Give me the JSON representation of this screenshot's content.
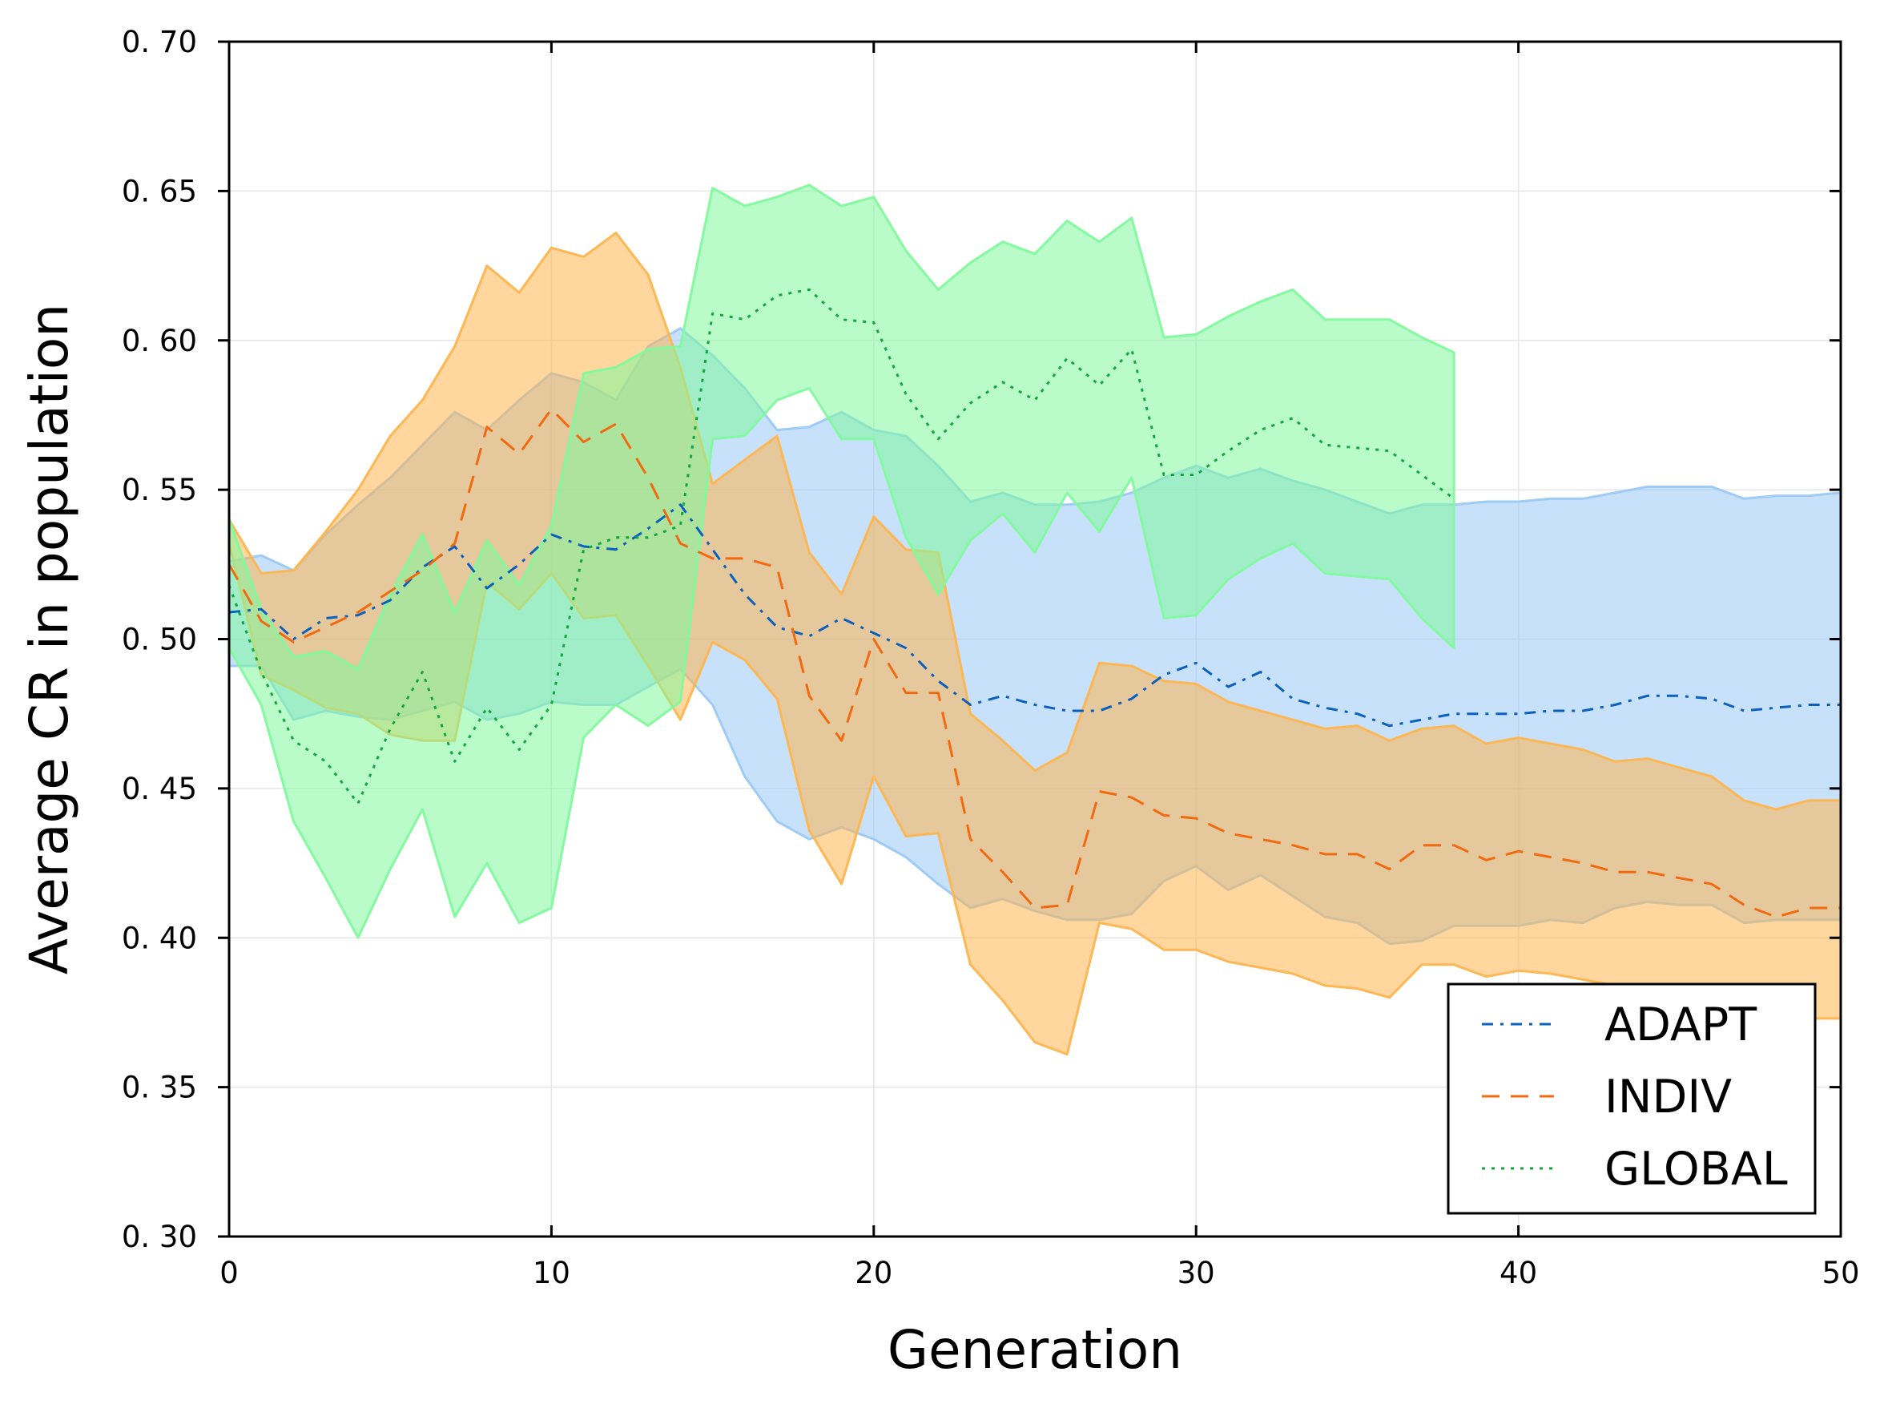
{
  "chart_data": {
    "type": "line",
    "title": "",
    "xlabel": "Generation",
    "ylabel": "Average CR in population",
    "xlim": [
      0,
      50
    ],
    "ylim": [
      0.3,
      0.7
    ],
    "x_ticks": [
      0,
      10,
      20,
      30,
      40,
      50
    ],
    "x_tick_labels": [
      "0",
      "10",
      "20",
      "30",
      "40",
      "50"
    ],
    "y_ticks": [
      0.3,
      0.35,
      0.4,
      0.45,
      0.5,
      0.55,
      0.6,
      0.65,
      0.7
    ],
    "y_tick_labels": [
      "0. 30",
      "0. 35",
      "0. 40",
      "0. 45",
      "0. 50",
      "0. 55",
      "0. 60",
      "0. 65",
      "0. 70"
    ],
    "grid": true,
    "legend_position": "bottom-right",
    "series": [
      {
        "name": "ADAPT",
        "color": "#0a5fbf",
        "band_color": "#9bc9f5",
        "dash": "dashdot",
        "x": [
          0,
          1,
          2,
          3,
          4,
          5,
          6,
          7,
          8,
          9,
          10,
          11,
          12,
          13,
          14,
          15,
          16,
          17,
          18,
          19,
          20,
          21,
          22,
          23,
          24,
          25,
          26,
          27,
          28,
          29,
          30,
          31,
          32,
          33,
          34,
          35,
          36,
          37,
          38,
          39,
          40,
          41,
          42,
          43,
          44,
          45,
          46,
          47,
          48,
          49,
          50
        ],
        "mean": [
          0.509,
          0.51,
          0.5,
          0.507,
          0.508,
          0.513,
          0.524,
          0.531,
          0.517,
          0.525,
          0.535,
          0.531,
          0.53,
          0.537,
          0.545,
          0.53,
          0.515,
          0.504,
          0.501,
          0.507,
          0.502,
          0.497,
          0.486,
          0.478,
          0.481,
          0.478,
          0.476,
          0.476,
          0.48,
          0.488,
          0.492,
          0.484,
          0.489,
          0.48,
          0.477,
          0.475,
          0.471,
          0.473,
          0.475,
          0.475,
          0.475,
          0.476,
          0.476,
          0.478,
          0.481,
          0.481,
          0.48,
          0.476,
          0.477,
          0.478,
          0.478
        ],
        "upper": [
          0.526,
          0.528,
          0.523,
          0.535,
          0.545,
          0.554,
          0.565,
          0.576,
          0.57,
          0.58,
          0.589,
          0.586,
          0.58,
          0.598,
          0.604,
          0.595,
          0.584,
          0.57,
          0.571,
          0.576,
          0.57,
          0.568,
          0.558,
          0.546,
          0.549,
          0.545,
          0.545,
          0.546,
          0.549,
          0.554,
          0.558,
          0.554,
          0.557,
          0.553,
          0.55,
          0.546,
          0.542,
          0.545,
          0.545,
          0.546,
          0.546,
          0.547,
          0.547,
          0.549,
          0.551,
          0.551,
          0.551,
          0.547,
          0.548,
          0.548,
          0.549
        ],
        "lower": [
          0.491,
          0.491,
          0.473,
          0.476,
          0.474,
          0.473,
          0.476,
          0.479,
          0.473,
          0.475,
          0.479,
          0.478,
          0.478,
          0.484,
          0.49,
          0.478,
          0.454,
          0.439,
          0.433,
          0.437,
          0.433,
          0.427,
          0.418,
          0.41,
          0.413,
          0.409,
          0.406,
          0.406,
          0.408,
          0.419,
          0.424,
          0.416,
          0.421,
          0.414,
          0.407,
          0.405,
          0.398,
          0.399,
          0.404,
          0.404,
          0.404,
          0.406,
          0.405,
          0.41,
          0.412,
          0.411,
          0.411,
          0.405,
          0.406,
          0.406,
          0.406
        ]
      },
      {
        "name": "INDIV",
        "color": "#f26a10",
        "band_color": "#fdb54e",
        "dash": "dashed",
        "x": [
          0,
          1,
          2,
          3,
          4,
          5,
          6,
          7,
          8,
          9,
          10,
          11,
          12,
          13,
          14,
          15,
          16,
          17,
          18,
          19,
          20,
          21,
          22,
          23,
          24,
          25,
          26,
          27,
          28,
          29,
          30,
          31,
          32,
          33,
          34,
          35,
          36,
          37,
          38,
          39,
          40,
          41,
          42,
          43,
          44,
          45,
          46,
          47,
          48,
          49,
          50
        ],
        "mean": [
          0.525,
          0.506,
          0.499,
          0.504,
          0.509,
          0.516,
          0.523,
          0.532,
          0.571,
          0.562,
          0.577,
          0.566,
          0.572,
          0.554,
          0.532,
          0.527,
          0.527,
          0.524,
          0.481,
          0.466,
          0.5,
          0.482,
          0.482,
          0.433,
          0.422,
          0.41,
          0.411,
          0.449,
          0.447,
          0.441,
          0.44,
          0.435,
          0.433,
          0.431,
          0.428,
          0.428,
          0.423,
          0.431,
          0.431,
          0.426,
          0.429,
          0.427,
          0.425,
          0.422,
          0.422,
          0.42,
          0.418,
          0.411,
          0.407,
          0.41,
          0.41
        ],
        "upper": [
          0.54,
          0.522,
          0.523,
          0.536,
          0.55,
          0.568,
          0.58,
          0.598,
          0.625,
          0.616,
          0.631,
          0.628,
          0.636,
          0.622,
          0.591,
          0.552,
          0.56,
          0.568,
          0.529,
          0.515,
          0.541,
          0.53,
          0.529,
          0.475,
          0.466,
          0.456,
          0.462,
          0.492,
          0.491,
          0.486,
          0.485,
          0.479,
          0.476,
          0.473,
          0.47,
          0.471,
          0.466,
          0.47,
          0.471,
          0.465,
          0.467,
          0.465,
          0.463,
          0.459,
          0.46,
          0.457,
          0.454,
          0.446,
          0.443,
          0.446,
          0.446
        ],
        "lower": [
          0.532,
          0.488,
          0.483,
          0.477,
          0.475,
          0.468,
          0.466,
          0.466,
          0.519,
          0.51,
          0.522,
          0.507,
          0.508,
          0.491,
          0.473,
          0.499,
          0.493,
          0.48,
          0.436,
          0.418,
          0.454,
          0.434,
          0.435,
          0.391,
          0.379,
          0.365,
          0.361,
          0.405,
          0.403,
          0.396,
          0.396,
          0.392,
          0.39,
          0.388,
          0.384,
          0.383,
          0.38,
          0.391,
          0.391,
          0.387,
          0.389,
          0.388,
          0.386,
          0.384,
          0.383,
          0.381,
          0.38,
          0.375,
          0.372,
          0.373,
          0.373
        ]
      },
      {
        "name": "GLOBAL",
        "color": "#12a640",
        "band_color": "#7ffa9d",
        "dash": "dotted",
        "x": [
          0,
          1,
          2,
          3,
          4,
          5,
          6,
          7,
          8,
          9,
          10,
          11,
          12,
          13,
          14,
          15,
          16,
          17,
          18,
          19,
          20,
          21,
          22,
          23,
          24,
          25,
          26,
          27,
          28,
          29,
          30,
          31,
          32,
          33,
          34,
          35,
          36,
          37,
          38
        ],
        "mean": [
          0.518,
          0.489,
          0.466,
          0.459,
          0.445,
          0.47,
          0.489,
          0.459,
          0.477,
          0.463,
          0.478,
          0.53,
          0.534,
          0.534,
          0.538,
          0.609,
          0.607,
          0.615,
          0.617,
          0.607,
          0.606,
          0.582,
          0.567,
          0.579,
          0.586,
          0.58,
          0.594,
          0.585,
          0.597,
          0.555,
          0.555,
          0.563,
          0.57,
          0.574,
          0.565,
          0.564,
          0.563,
          0.555,
          0.547
        ],
        "upper": [
          0.54,
          0.51,
          0.494,
          0.496,
          0.49,
          0.515,
          0.535,
          0.509,
          0.533,
          0.518,
          0.538,
          0.589,
          0.591,
          0.597,
          0.598,
          0.651,
          0.645,
          0.648,
          0.652,
          0.645,
          0.648,
          0.63,
          0.617,
          0.626,
          0.633,
          0.629,
          0.64,
          0.633,
          0.641,
          0.601,
          0.602,
          0.608,
          0.613,
          0.617,
          0.607,
          0.607,
          0.607,
          0.601,
          0.596
        ],
        "lower": [
          0.497,
          0.478,
          0.439,
          0.42,
          0.4,
          0.423,
          0.443,
          0.407,
          0.425,
          0.405,
          0.41,
          0.467,
          0.478,
          0.471,
          0.479,
          0.567,
          0.568,
          0.58,
          0.584,
          0.567,
          0.567,
          0.534,
          0.515,
          0.533,
          0.542,
          0.529,
          0.549,
          0.536,
          0.554,
          0.507,
          0.508,
          0.52,
          0.527,
          0.532,
          0.522,
          0.521,
          0.52,
          0.507,
          0.497
        ]
      }
    ]
  }
}
